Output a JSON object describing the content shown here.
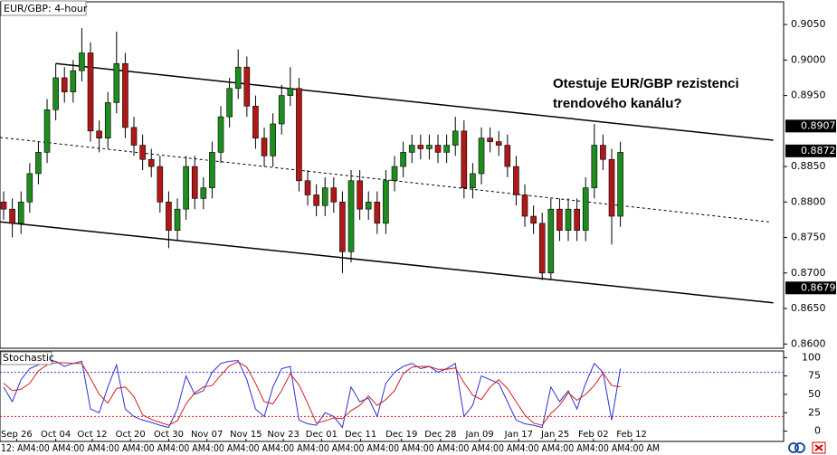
{
  "chart_data": [
    {
      "type": "candlestick",
      "title": "EUR/GBP: 4-hour",
      "annotation": [
        "Otestuje EUR/GBP rezistenci",
        "trendového kanálu?"
      ],
      "xlim": [
        -0.42,
        89.79
      ],
      "ylim": [
        0.8594,
        0.9082
      ],
      "yticks": [
        {
          "value": 0.86,
          "label": "0.8600"
        },
        {
          "value": 0.865,
          "label": "0.8650"
        },
        {
          "value": 0.87,
          "label": "0.8700"
        },
        {
          "value": 0.875,
          "label": "0.8750"
        },
        {
          "value": 0.88,
          "label": "0.8800"
        },
        {
          "value": 0.885,
          "label": "0.8850"
        },
        {
          "value": 0.895,
          "label": "0.8950"
        },
        {
          "value": 0.9,
          "label": "0.9000"
        },
        {
          "value": 0.905,
          "label": "0.9050"
        }
      ],
      "price_labels": [
        {
          "value": 0.8907,
          "label": "0.8907"
        },
        {
          "value": 0.8872,
          "label": "0.8872"
        },
        {
          "value": 0.8679,
          "label": "0.8679"
        }
      ],
      "up_color": "#1e8c1e",
      "down_color": "#b01818",
      "open": [
        0.88,
        0.879,
        0.877,
        0.88,
        0.884,
        0.887,
        0.893,
        0.8975,
        0.8955,
        0.8985,
        0.901,
        0.89,
        0.889,
        0.894,
        0.8995,
        0.8905,
        0.888,
        0.886,
        0.885,
        0.88,
        0.876,
        0.879,
        0.885,
        0.8805,
        0.882,
        0.887,
        0.892,
        0.896,
        0.899,
        0.8935,
        0.889,
        0.8865,
        0.891,
        0.895,
        0.896,
        0.883,
        0.881,
        0.8795,
        0.882,
        0.88,
        0.873,
        0.883,
        0.879,
        0.88,
        0.877,
        0.883,
        0.885,
        0.887,
        0.888,
        0.8875,
        0.888,
        0.887,
        0.888,
        0.89,
        0.882,
        0.884,
        0.889,
        0.8885,
        0.888,
        0.885,
        0.881,
        0.878,
        0.877,
        0.87,
        0.879,
        0.876,
        0.879,
        0.876,
        0.882,
        0.888,
        0.886,
        0.878
      ],
      "high": [
        0.8815,
        0.8805,
        0.8815,
        0.8855,
        0.8885,
        0.8945,
        0.8995,
        0.899,
        0.9,
        0.9045,
        0.9025,
        0.8915,
        0.8955,
        0.904,
        0.901,
        0.892,
        0.8895,
        0.8875,
        0.8865,
        0.8815,
        0.8805,
        0.8865,
        0.8865,
        0.8835,
        0.8885,
        0.8935,
        0.8975,
        0.9015,
        0.9005,
        0.895,
        0.8905,
        0.8925,
        0.8965,
        0.899,
        0.8975,
        0.8845,
        0.8825,
        0.8835,
        0.8835,
        0.8815,
        0.8845,
        0.8845,
        0.8815,
        0.8815,
        0.8845,
        0.8865,
        0.8885,
        0.8895,
        0.8895,
        0.8895,
        0.8895,
        0.8895,
        0.892,
        0.8915,
        0.8855,
        0.8905,
        0.8905,
        0.89,
        0.8895,
        0.8865,
        0.8825,
        0.8795,
        0.8785,
        0.8805,
        0.8805,
        0.8805,
        0.8805,
        0.8835,
        0.891,
        0.8895,
        0.8875,
        0.8885
      ],
      "low": [
        0.8775,
        0.875,
        0.8755,
        0.8785,
        0.8825,
        0.8855,
        0.8915,
        0.894,
        0.894,
        0.897,
        0.8885,
        0.887,
        0.8875,
        0.8925,
        0.889,
        0.8865,
        0.8845,
        0.8835,
        0.8785,
        0.8735,
        0.8745,
        0.8775,
        0.879,
        0.879,
        0.8805,
        0.8855,
        0.8905,
        0.8945,
        0.892,
        0.8875,
        0.885,
        0.885,
        0.8895,
        0.8935,
        0.8815,
        0.8795,
        0.878,
        0.878,
        0.8785,
        0.87,
        0.8715,
        0.8775,
        0.8775,
        0.8755,
        0.8755,
        0.8815,
        0.8835,
        0.8855,
        0.886,
        0.886,
        0.8855,
        0.8855,
        0.8865,
        0.8805,
        0.8805,
        0.8825,
        0.887,
        0.8865,
        0.8835,
        0.8795,
        0.8765,
        0.8755,
        0.869,
        0.869,
        0.8745,
        0.8745,
        0.8745,
        0.8745,
        0.8805,
        0.8845,
        0.874,
        0.8765
      ],
      "close": [
        0.879,
        0.877,
        0.88,
        0.884,
        0.887,
        0.893,
        0.8975,
        0.8955,
        0.8985,
        0.901,
        0.89,
        0.889,
        0.894,
        0.8995,
        0.8905,
        0.888,
        0.886,
        0.885,
        0.88,
        0.876,
        0.879,
        0.885,
        0.8805,
        0.882,
        0.887,
        0.892,
        0.896,
        0.899,
        0.8935,
        0.889,
        0.8865,
        0.891,
        0.895,
        0.896,
        0.883,
        0.881,
        0.8795,
        0.882,
        0.88,
        0.873,
        0.883,
        0.879,
        0.88,
        0.877,
        0.883,
        0.885,
        0.887,
        0.888,
        0.8875,
        0.888,
        0.887,
        0.888,
        0.89,
        0.882,
        0.884,
        0.889,
        0.8885,
        0.888,
        0.885,
        0.881,
        0.878,
        0.877,
        0.87,
        0.879,
        0.876,
        0.879,
        0.876,
        0.882,
        0.888,
        0.886,
        0.878,
        0.887
      ],
      "lines": [
        {
          "x": [
            6,
            88.6
          ],
          "y": [
            0.8995,
            0.8887
          ],
          "style": "solid"
        },
        {
          "x": [
            -0.42,
            88.6
          ],
          "y": [
            0.8772,
            0.8658
          ],
          "style": "solid"
        },
        {
          "x": [
            -0.42,
            88.1
          ],
          "y": [
            0.8891,
            0.8772
          ],
          "style": "dotted"
        }
      ]
    },
    {
      "type": "line",
      "title": "Stochastic",
      "xlim": [
        -0.42,
        89.79
      ],
      "ylim": [
        -14,
        109
      ],
      "yticks": [
        0,
        25,
        50,
        75,
        100
      ],
      "levels": [
        {
          "value": 80,
          "color": "#3a3ad8"
        },
        {
          "value": 20,
          "color": "#e02020"
        }
      ],
      "xticks": [
        {
          "value": 1.5,
          "label": "Sep 26"
        },
        {
          "value": 6,
          "label": "Oct 04"
        },
        {
          "value": 10.2,
          "label": "Oct 12"
        },
        {
          "value": 14.6,
          "label": "Oct 20"
        },
        {
          "value": 19,
          "label": "Oct 30"
        },
        {
          "value": 23.4,
          "label": "Nov 07"
        },
        {
          "value": 27.9,
          "label": "Nov 15"
        },
        {
          "value": 32.2,
          "label": "Nov 23"
        },
        {
          "value": 36.6,
          "label": "Dec 01"
        },
        {
          "value": 41.1,
          "label": "Dec 11"
        },
        {
          "value": 45.8,
          "label": "Dec 19"
        },
        {
          "value": 50.3,
          "label": "Dec 28"
        },
        {
          "value": 54.8,
          "label": "Jan 09"
        },
        {
          "value": 59.3,
          "label": "Jan 17"
        },
        {
          "value": 63.5,
          "label": "Jan 25"
        },
        {
          "value": 67.9,
          "label": "Feb 02"
        },
        {
          "value": 72.3,
          "label": "Feb 12"
        }
      ],
      "time_row": "12:  AM4:00 AM4:00 AM4:00 AM4:00 AM4:00 AM4:00 AM4:00 AM4:00 AM4:00 AM4:00 AM4:00 AM4:00 AM4:00 AM4:00 AM4:00 AM4:00 AM4:00 AM4:00 AM",
      "series": [
        {
          "color": "#2f2fd0",
          "values": [
            60,
            40,
            70,
            85,
            90,
            95,
            95,
            88,
            92,
            95,
            30,
            25,
            60,
            90,
            30,
            20,
            15,
            12,
            8,
            5,
            30,
            75,
            50,
            55,
            80,
            92,
            95,
            96,
            70,
            30,
            20,
            60,
            85,
            88,
            15,
            10,
            8,
            25,
            20,
            5,
            60,
            40,
            45,
            20,
            65,
            80,
            88,
            92,
            85,
            88,
            80,
            85,
            92,
            20,
            35,
            75,
            70,
            65,
            40,
            15,
            10,
            8,
            5,
            60,
            40,
            55,
            30,
            65,
            92,
            80,
            15,
            85
          ]
        },
        {
          "color": "#d02020",
          "values": [
            65,
            55,
            57,
            65,
            82,
            90,
            93,
            93,
            92,
            92,
            72,
            50,
            38,
            58,
            60,
            47,
            22,
            16,
            12,
            8,
            14,
            37,
            52,
            60,
            62,
            76,
            89,
            94,
            87,
            65,
            40,
            37,
            55,
            78,
            63,
            38,
            11,
            14,
            18,
            17,
            28,
            35,
            48,
            35,
            43,
            55,
            78,
            87,
            88,
            88,
            84,
            84,
            86,
            66,
            49,
            43,
            60,
            70,
            58,
            40,
            22,
            11,
            8,
            24,
            35,
            52,
            42,
            50,
            62,
            79,
            62,
            60
          ]
        }
      ]
    }
  ]
}
